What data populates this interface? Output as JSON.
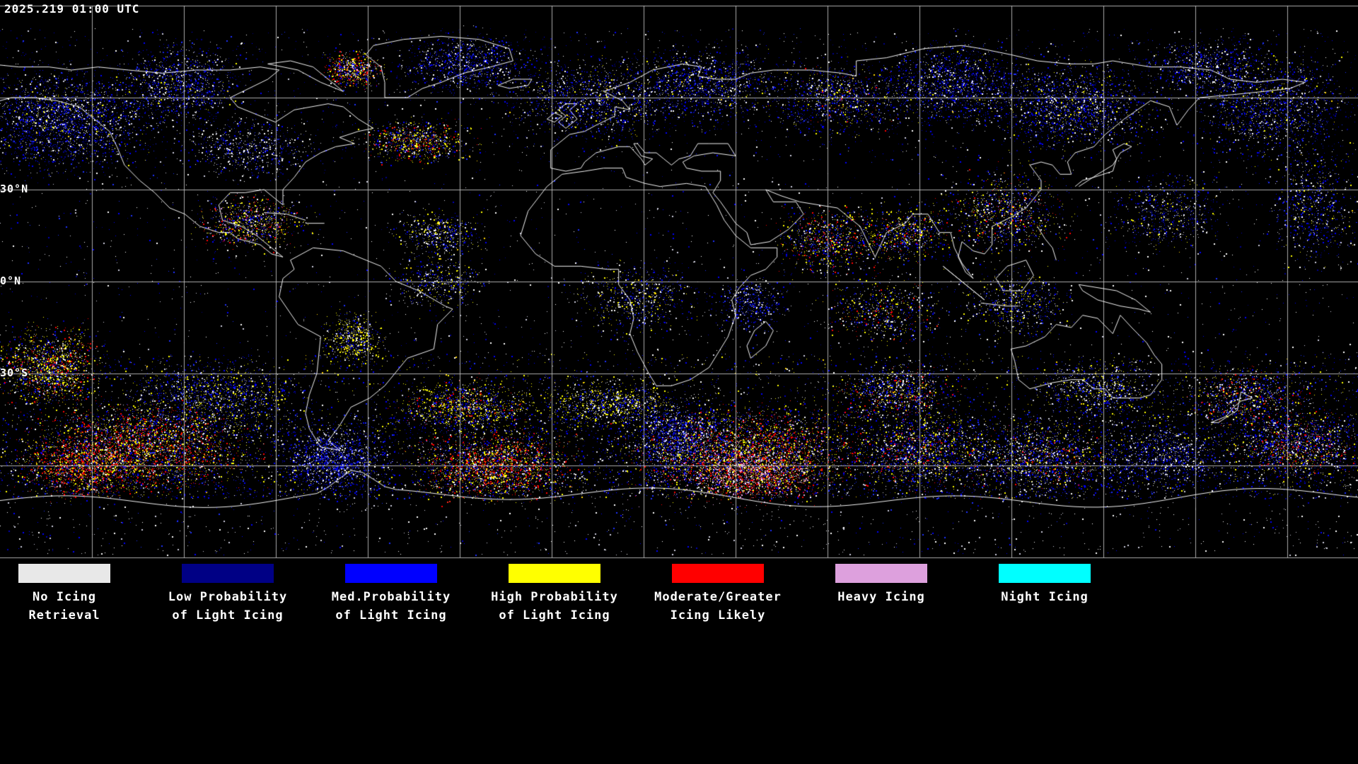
{
  "header": {
    "timestamp": "2025.219 01:00 UTC"
  },
  "map": {
    "background_color": "#000000",
    "grid_color": "#c8c8c8",
    "coastline_color": "#ffffff",
    "latitude_labels": [
      {
        "label": "30°N"
      },
      {
        "label": "0°N"
      },
      {
        "label": "30°S"
      }
    ]
  },
  "legend": {
    "items": [
      {
        "label_line1": "No Icing",
        "label_line2": "Retrieval",
        "color": "#e8e8e8"
      },
      {
        "label_line1": "Low Probability",
        "label_line2": "of Light Icing",
        "color": "#000085"
      },
      {
        "label_line1": "Med.Probability",
        "label_line2": "of Light Icing",
        "color": "#0000ff"
      },
      {
        "label_line1": "High Probability",
        "label_line2": "of Light Icing",
        "color": "#ffff00"
      },
      {
        "label_line1": "Moderate/Greater",
        "label_line2": "Icing Likely",
        "color": "#ff0000"
      },
      {
        "label_line1": "Heavy Icing",
        "label_line2": "",
        "color": "#dda0dd"
      },
      {
        "label_line1": "Night Icing",
        "label_line2": "",
        "color": "#00ffff"
      }
    ]
  }
}
